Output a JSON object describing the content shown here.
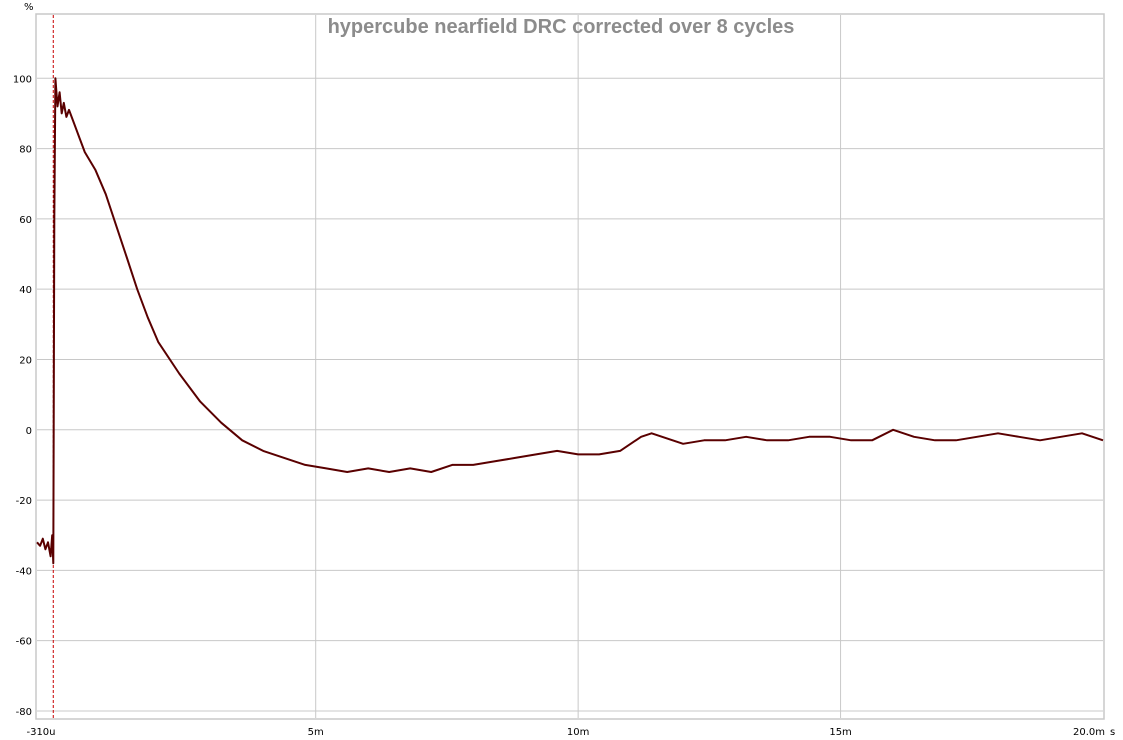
{
  "chart_data": {
    "type": "line",
    "title": "hypercube nearfield DRC corrected over 8 cycles",
    "ylabel": "%",
    "x_unit": "s",
    "xlim": [
      -0.00031,
      0.02
    ],
    "ylim": [
      -82,
      118
    ],
    "grid": true,
    "x_ticks": [
      {
        "value": -0.00031,
        "label": "-310u"
      },
      {
        "value": 0.005,
        "label": "5m"
      },
      {
        "value": 0.01,
        "label": "10m"
      },
      {
        "value": 0.015,
        "label": "15m"
      },
      {
        "value": 0.02,
        "label": "20.0m"
      }
    ],
    "y_ticks": [
      100,
      80,
      60,
      40,
      20,
      0,
      -20,
      -40,
      -60,
      -80
    ],
    "marker_x": 0.0,
    "series": [
      {
        "color": "#5a0000",
        "x": [
          -0.00031,
          -0.00025,
          -0.0002,
          -0.00015,
          -0.0001,
          -5e-05,
          -2e-05,
          0.0,
          2e-05,
          4e-05,
          8e-05,
          0.00012,
          0.00016,
          0.0002,
          0.00025,
          0.0003,
          0.0004,
          0.0005,
          0.0006,
          0.0008,
          0.001,
          0.0012,
          0.0014,
          0.0016,
          0.0018,
          0.002,
          0.0024,
          0.0028,
          0.0032,
          0.0036,
          0.004,
          0.0044,
          0.0048,
          0.0052,
          0.0056,
          0.006,
          0.0064,
          0.0068,
          0.0072,
          0.0076,
          0.008,
          0.0084,
          0.0088,
          0.0092,
          0.0096,
          0.01,
          0.0104,
          0.0108,
          0.0112,
          0.0114,
          0.0116,
          0.0118,
          0.012,
          0.0124,
          0.0128,
          0.0132,
          0.0136,
          0.014,
          0.0144,
          0.0148,
          0.0152,
          0.0156,
          0.016,
          0.0164,
          0.0168,
          0.0172,
          0.0176,
          0.018,
          0.0184,
          0.0188,
          0.0192,
          0.0196,
          0.02
        ],
        "y": [
          -32,
          -33,
          -31,
          -34,
          -32,
          -36,
          -30,
          -38,
          60,
          100,
          92,
          96,
          90,
          93,
          89,
          91,
          87,
          83,
          79,
          74,
          67,
          58,
          49,
          40,
          32,
          25,
          16,
          8,
          2,
          -3,
          -6,
          -8,
          -10,
          -11,
          -12,
          -11,
          -12,
          -11,
          -12,
          -10,
          -10,
          -9,
          -8,
          -7,
          -6,
          -7,
          -7,
          -6,
          -2,
          -1,
          -2,
          -3,
          -4,
          -3,
          -3,
          -2,
          -3,
          -3,
          -2,
          -2,
          -3,
          -3,
          0,
          -2,
          -3,
          -3,
          -2,
          -1,
          -2,
          -3,
          -2,
          -1,
          -3
        ]
      }
    ]
  }
}
